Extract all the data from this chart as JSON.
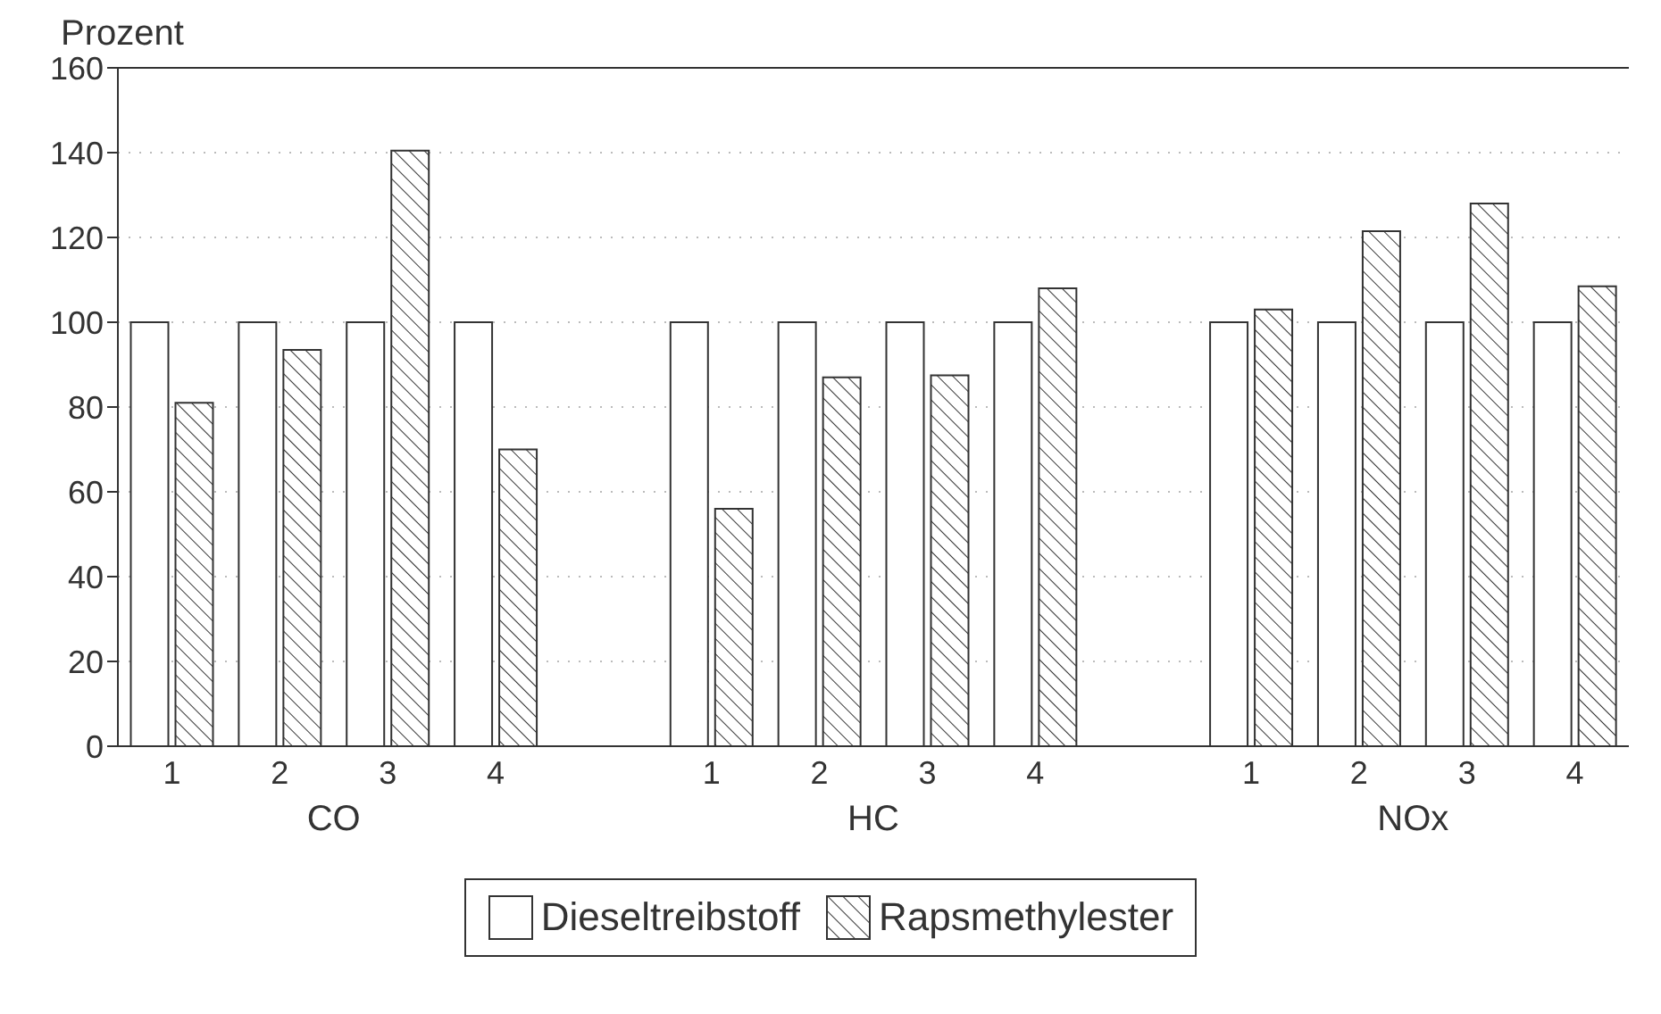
{
  "chart_data": {
    "type": "bar",
    "ylabel": "Prozent",
    "categories": [
      "1",
      "2",
      "3",
      "4",
      null,
      "1",
      "2",
      "3",
      "4",
      null,
      "1",
      "2",
      "3",
      "4"
    ],
    "series": [
      {
        "name": "Dieseltreibstoff",
        "color": "#ffffff",
        "values": [
          100,
          100,
          100,
          100,
          null,
          100,
          100,
          100,
          100,
          null,
          100,
          100,
          100,
          100
        ]
      },
      {
        "name": "Rapsmethylester",
        "color": "#333333",
        "values": [
          81,
          93.5,
          140.5,
          70,
          null,
          56,
          87,
          87.5,
          108,
          null,
          103,
          121.5,
          128,
          108.5
        ]
      }
    ],
    "annotations": [
      "CO",
      "HC",
      "NOx"
    ],
    "ylim": [
      0,
      160
    ],
    "yticks": [
      0,
      20,
      40,
      60,
      80,
      100,
      120,
      140,
      160
    ],
    "grid": "y",
    "legend": "bottom"
  }
}
